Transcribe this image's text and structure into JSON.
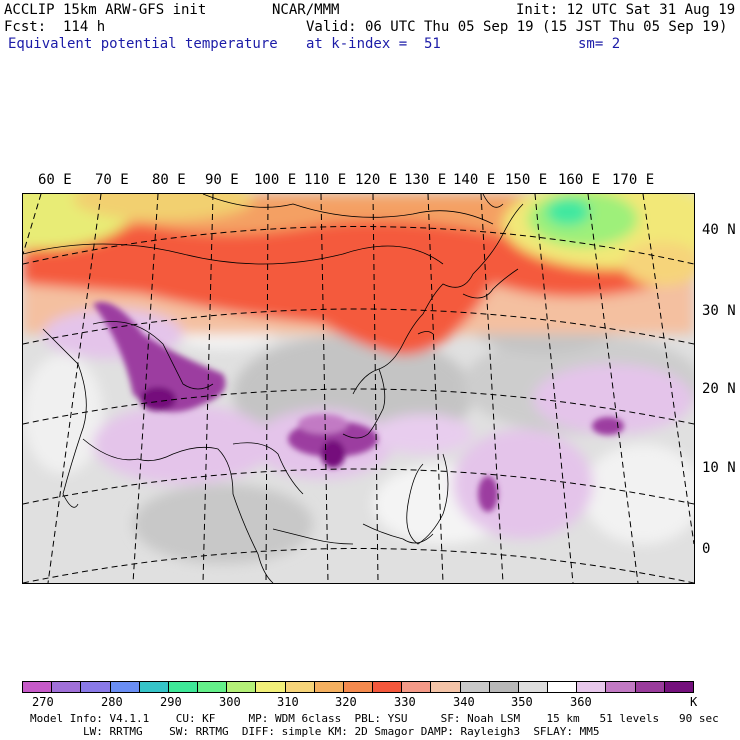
{
  "header": {
    "model": "ACCLIP 15km ARW-GFS init",
    "org": "NCAR/MMM",
    "init": "Init: 12 UTC Sat 31 Aug 19",
    "fcst": "Fcst:  114 h",
    "valid": "Valid: 06 UTC Thu 05 Sep 19 (15 JST Thu 05 Sep 19)",
    "field": "Equivalent potential temperature",
    "level": "at k-index =  51",
    "smooth": "sm= 2"
  },
  "map": {
    "lon_labels": [
      "60 E",
      "70 E",
      "80 E",
      "90 E",
      "100 E",
      "110 E",
      "120 E",
      "130 E",
      "140 E",
      "150 E",
      "160 E",
      "170 E"
    ],
    "lat_labels": [
      "40 N",
      "30 N",
      "20 N",
      "10 N",
      "0"
    ]
  },
  "colorbar": {
    "unit": "K",
    "labels": [
      "270",
      "280",
      "290",
      "300",
      "310",
      "320",
      "330",
      "340",
      "350",
      "360"
    ],
    "colors": [
      "#c65ac8",
      "#a070d8",
      "#8a7ae8",
      "#6a8ef4",
      "#36c4c8",
      "#3ee898",
      "#64f08a",
      "#b4f078",
      "#f2f07a",
      "#f6d47a",
      "#f4b060",
      "#f48a4e",
      "#f4583c",
      "#f49a88",
      "#f4c4a8",
      "#c8c8c8",
      "#b8b8b8",
      "#dedede",
      "#ffffff",
      "#e8c8ec",
      "#c27ac4",
      "#9a3c9c",
      "#74107c"
    ]
  },
  "footer": {
    "line1": "Model Info: V4.1.1    CU: KF     MP: WDM 6class  PBL: YSU     SF: Noah LSM    15 km   51 levels   90 sec",
    "line2": "        LW: RRTMG    SW: RRTMG  DIFF: simple KM: 2D Smagor DAMP: Rayleigh3  SFLAY: MM5"
  }
}
